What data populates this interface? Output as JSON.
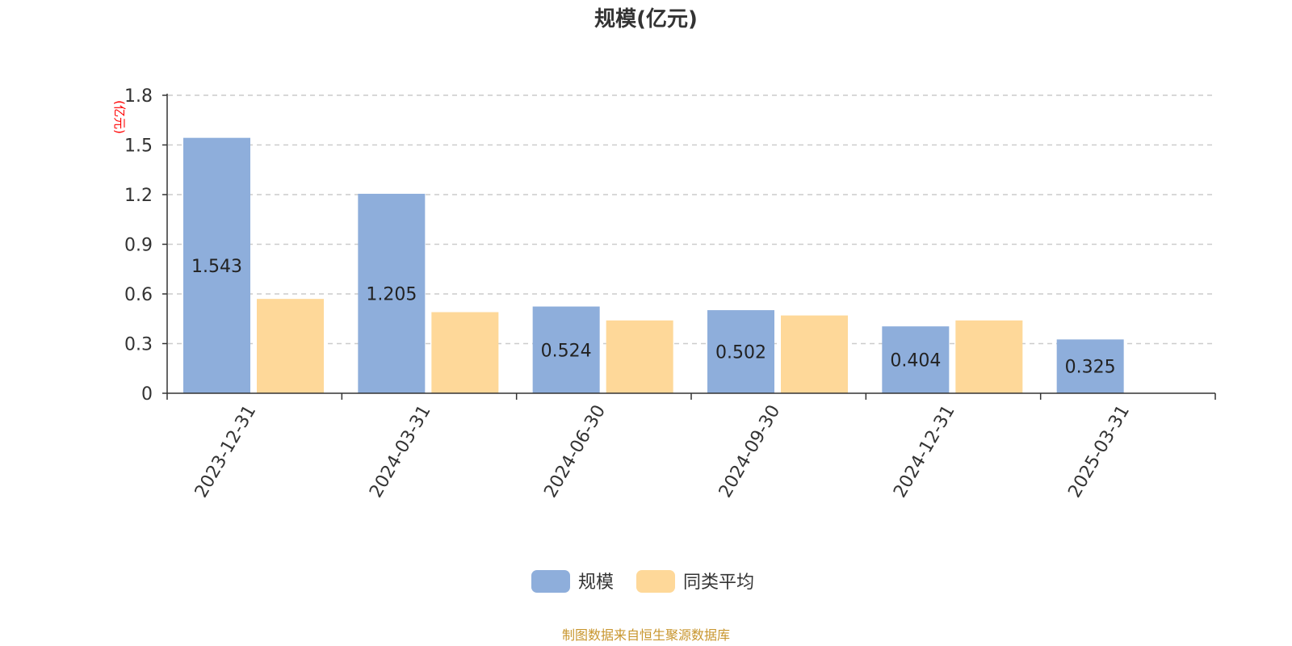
{
  "chart_data": {
    "type": "bar",
    "title": "规模(亿元)",
    "ylabel": "(亿元)",
    "xlabel": "",
    "categories": [
      "2023-12-31",
      "2024-03-31",
      "2024-06-30",
      "2024-09-30",
      "2024-12-31",
      "2025-03-31"
    ],
    "series": [
      {
        "name": "规模",
        "values": [
          1.543,
          1.205,
          0.524,
          0.502,
          0.404,
          0.325
        ],
        "color": "#8eaedb",
        "show_labels": true
      },
      {
        "name": "同类平均",
        "values": [
          0.57,
          0.49,
          0.44,
          0.47,
          0.44,
          null
        ],
        "color": "#fed899",
        "show_labels": false
      }
    ],
    "ylim": [
      0,
      1.8
    ],
    "yticks": [
      0,
      0.3,
      0.6,
      0.9,
      1.2,
      1.5,
      1.8
    ],
    "ytick_labels": [
      "0",
      "0.3",
      "0.6",
      "0.9",
      "1.2",
      "1.5",
      "1.8"
    ],
    "grid": true,
    "legend_position": "bottom-center"
  },
  "source_text": "制图数据来自恒生聚源数据库",
  "colors": {
    "axis": "#333333",
    "grid": "#cccccc",
    "unit_label": "#ff0000",
    "source_text": "#c8962e"
  }
}
